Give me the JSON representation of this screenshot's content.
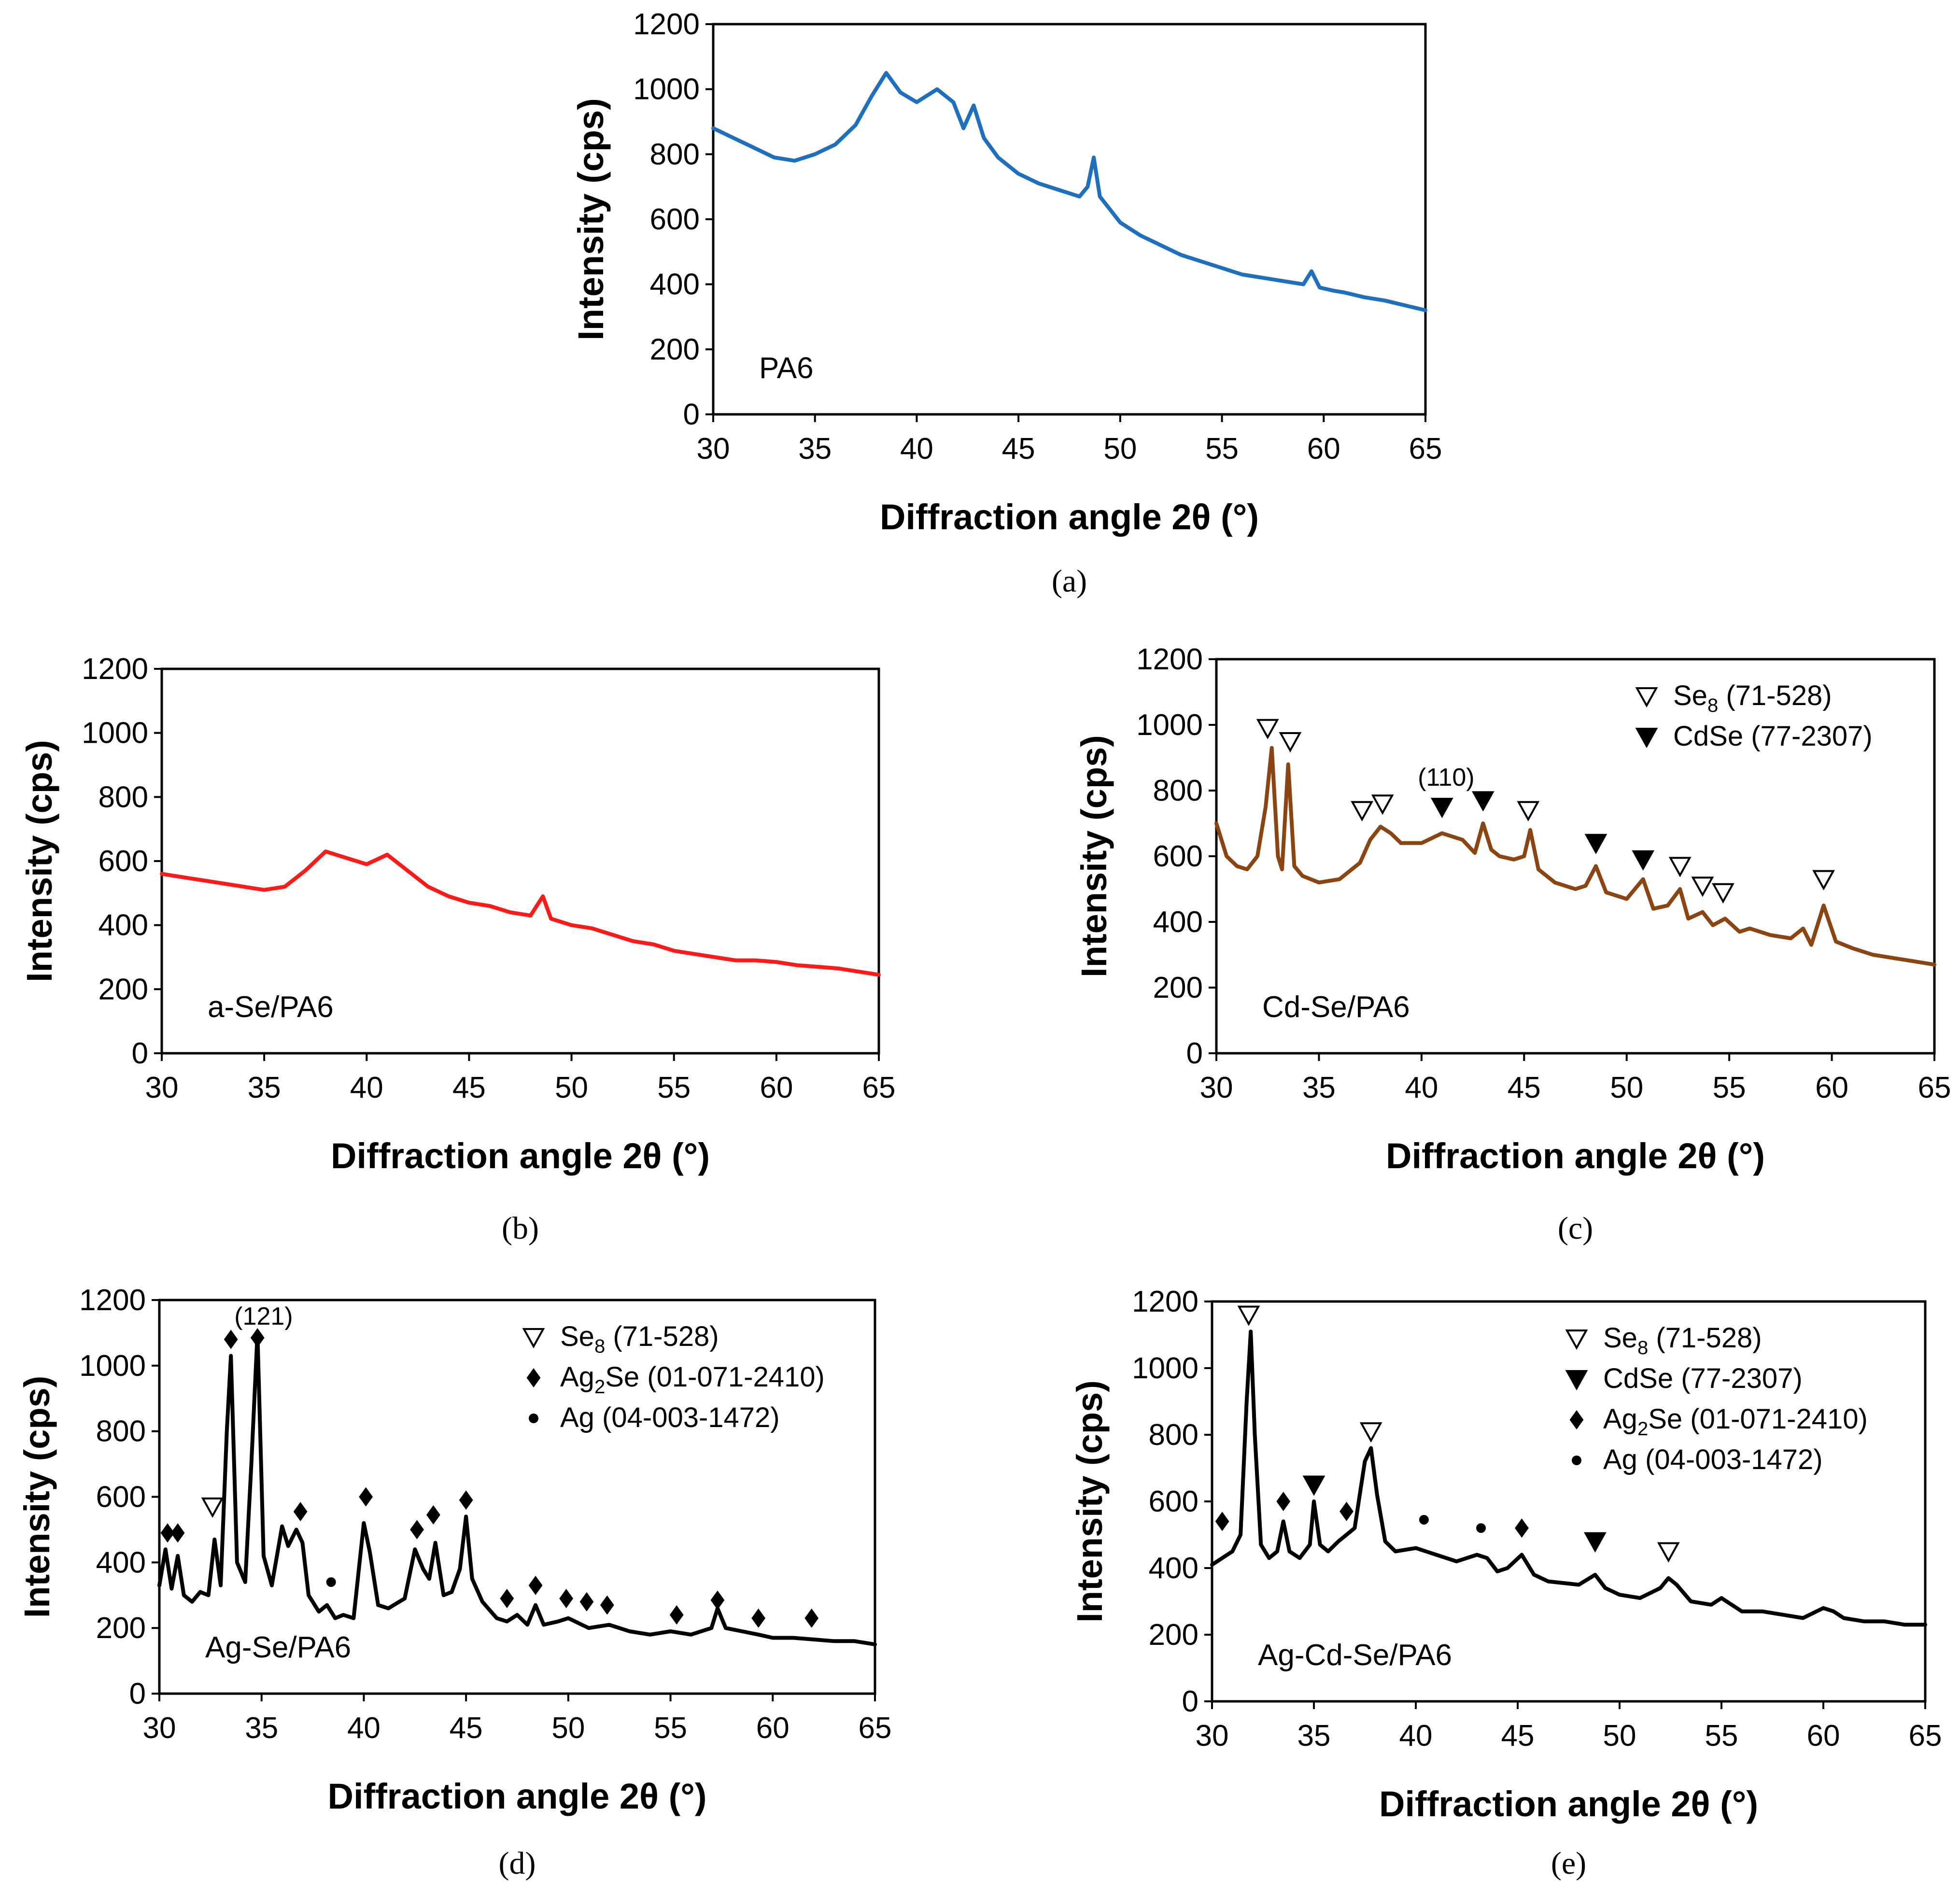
{
  "chart_data": [
    {
      "id": "a",
      "type": "line",
      "caption": "(a)",
      "sample": "PA6",
      "color": "#1f6fbf",
      "xlabel": "Diffraction angle 2θ (°)",
      "ylabel": "Intensity (cps)",
      "xlim": [
        30,
        65
      ],
      "ylim": [
        0,
        1200
      ],
      "xticks": [
        30,
        35,
        40,
        45,
        50,
        55,
        60,
        65
      ],
      "yticks": [
        0,
        200,
        400,
        600,
        800,
        1000,
        1200
      ],
      "legend": [],
      "annotations": [],
      "markers": [],
      "series": [
        {
          "x": [
            30,
            31,
            32,
            33,
            34,
            35,
            36,
            37,
            37.8,
            38.5,
            39.2,
            40,
            41,
            41.8,
            42.3,
            42.8,
            43.3,
            44,
            45,
            46,
            47,
            48,
            48.4,
            48.7,
            49,
            49.5,
            50,
            51,
            52,
            53,
            54,
            55,
            56,
            57,
            58,
            59,
            59.4,
            59.8,
            60.5,
            61,
            62,
            63,
            64,
            65
          ],
          "y": [
            880,
            850,
            820,
            790,
            780,
            800,
            830,
            890,
            980,
            1050,
            990,
            960,
            1000,
            960,
            880,
            950,
            850,
            790,
            740,
            710,
            690,
            670,
            700,
            790,
            670,
            630,
            590,
            550,
            520,
            490,
            470,
            450,
            430,
            420,
            410,
            400,
            440,
            390,
            380,
            375,
            360,
            350,
            335,
            320
          ]
        }
      ]
    },
    {
      "id": "b",
      "type": "line",
      "caption": "(b)",
      "sample": "a-Se/PA6",
      "color": "#ff1a1a",
      "xlabel": "Diffraction angle 2θ (°)",
      "ylabel": "Intensity (cps)",
      "xlim": [
        30,
        65
      ],
      "ylim": [
        0,
        1200
      ],
      "xticks": [
        30,
        35,
        40,
        45,
        50,
        55,
        60,
        65
      ],
      "yticks": [
        0,
        200,
        400,
        600,
        800,
        1000,
        1200
      ],
      "legend": [],
      "annotations": [],
      "markers": [],
      "series": [
        {
          "x": [
            30,
            31,
            32,
            33,
            34,
            35,
            36,
            37,
            38,
            39,
            40,
            41,
            42,
            43,
            44,
            45,
            46,
            47,
            48,
            48.6,
            49,
            50,
            51,
            52,
            53,
            54,
            55,
            56,
            57,
            58,
            59,
            60,
            61,
            62,
            63,
            64,
            65
          ],
          "y": [
            560,
            550,
            540,
            530,
            520,
            510,
            520,
            570,
            630,
            610,
            590,
            620,
            570,
            520,
            490,
            470,
            460,
            440,
            430,
            490,
            420,
            400,
            390,
            370,
            350,
            340,
            320,
            310,
            300,
            290,
            290,
            285,
            275,
            270,
            265,
            255,
            245
          ]
        }
      ]
    },
    {
      "id": "c",
      "type": "line",
      "caption": "(c)",
      "sample": "Cd-Se/PA6",
      "color": "#8b4513",
      "xlabel": "Diffraction angle 2θ (°)",
      "ylabel": "Intensity (cps)",
      "xlim": [
        30,
        65
      ],
      "ylim": [
        0,
        1200
      ],
      "xticks": [
        30,
        35,
        40,
        45,
        50,
        55,
        60,
        65
      ],
      "yticks": [
        0,
        200,
        400,
        600,
        800,
        1000,
        1200
      ],
      "legend": [
        {
          "symbol": "tri-down-open",
          "text": "Se",
          "sub": "8",
          "rest": " (71-528)"
        },
        {
          "symbol": "tri-down-filled",
          "text": "CdSe (77-2307)",
          "sub": "",
          "rest": ""
        }
      ],
      "annotations": [
        {
          "text": "(110)",
          "x": 41.2,
          "y": 815
        }
      ],
      "markers": [
        {
          "symbol": "tri-down-open",
          "x": 32.5,
          "y": 990
        },
        {
          "symbol": "tri-down-open",
          "x": 33.6,
          "y": 950
        },
        {
          "symbol": "tri-down-open",
          "x": 37.1,
          "y": 740
        },
        {
          "symbol": "tri-down-open",
          "x": 38.1,
          "y": 760
        },
        {
          "symbol": "tri-down-filled",
          "x": 41.0,
          "y": 750
        },
        {
          "symbol": "tri-down-filled",
          "x": 43.0,
          "y": 770
        },
        {
          "symbol": "tri-down-open",
          "x": 45.2,
          "y": 740
        },
        {
          "symbol": "tri-down-filled",
          "x": 48.5,
          "y": 640
        },
        {
          "symbol": "tri-down-filled",
          "x": 50.8,
          "y": 590
        },
        {
          "symbol": "tri-down-open",
          "x": 52.6,
          "y": 570
        },
        {
          "symbol": "tri-down-open",
          "x": 53.7,
          "y": 510
        },
        {
          "symbol": "tri-down-open",
          "x": 54.7,
          "y": 490
        },
        {
          "symbol": "tri-down-open",
          "x": 59.6,
          "y": 530
        }
      ],
      "series": [
        {
          "x": [
            30,
            30.5,
            31,
            31.5,
            32,
            32.4,
            32.7,
            33,
            33.2,
            33.5,
            33.8,
            34.2,
            35,
            36,
            37,
            37.5,
            38,
            38.5,
            39,
            40,
            41,
            42,
            42.6,
            43,
            43.4,
            43.8,
            44.5,
            45,
            45.3,
            45.7,
            46.5,
            47.5,
            48,
            48.5,
            49,
            50,
            50.8,
            51.3,
            52,
            52.6,
            53,
            53.7,
            54.2,
            54.8,
            55.5,
            56,
            57,
            58,
            58.6,
            59,
            59.6,
            60.2,
            61,
            62,
            63,
            64,
            65
          ],
          "y": [
            700,
            600,
            570,
            560,
            600,
            750,
            930,
            600,
            560,
            880,
            570,
            540,
            520,
            530,
            580,
            650,
            690,
            670,
            640,
            640,
            670,
            650,
            610,
            700,
            620,
            600,
            590,
            600,
            680,
            560,
            520,
            500,
            510,
            570,
            490,
            470,
            530,
            440,
            450,
            500,
            410,
            430,
            390,
            410,
            370,
            380,
            360,
            350,
            380,
            330,
            450,
            340,
            320,
            300,
            290,
            280,
            270
          ]
        }
      ]
    },
    {
      "id": "d",
      "type": "line",
      "caption": "(d)",
      "sample": "Ag-Se/PA6",
      "color": "#000000",
      "xlabel": "Diffraction angle 2θ (°)",
      "ylabel": "Intensity (cps)",
      "xlim": [
        30,
        65
      ],
      "ylim": [
        0,
        1200
      ],
      "xticks": [
        30,
        35,
        40,
        45,
        50,
        55,
        60,
        65
      ],
      "yticks": [
        0,
        200,
        400,
        600,
        800,
        1000,
        1200
      ],
      "legend": [
        {
          "symbol": "tri-down-open",
          "text": "Se",
          "sub": "8",
          "rest": " (71-528)"
        },
        {
          "symbol": "diamond",
          "text": "Ag",
          "sub": "2",
          "rest": "Se (01-071-2410)"
        },
        {
          "symbol": "dot",
          "text": "Ag (04-003-1472)",
          "sub": "",
          "rest": ""
        }
      ],
      "annotations": [
        {
          "text": "(121)",
          "x": 35.1,
          "y": 1125
        }
      ],
      "markers": [
        {
          "symbol": "diamond",
          "x": 30.4,
          "y": 490
        },
        {
          "symbol": "diamond",
          "x": 30.9,
          "y": 490
        },
        {
          "symbol": "tri-down-open",
          "x": 32.6,
          "y": 570
        },
        {
          "symbol": "diamond",
          "x": 33.5,
          "y": 1080
        },
        {
          "symbol": "diamond",
          "x": 34.8,
          "y": 1085
        },
        {
          "symbol": "diamond",
          "x": 36.9,
          "y": 555
        },
        {
          "symbol": "dot",
          "x": 38.4,
          "y": 340
        },
        {
          "symbol": "diamond",
          "x": 40.1,
          "y": 600
        },
        {
          "symbol": "diamond",
          "x": 42.6,
          "y": 500
        },
        {
          "symbol": "diamond",
          "x": 43.4,
          "y": 545
        },
        {
          "symbol": "diamond",
          "x": 45.0,
          "y": 590
        },
        {
          "symbol": "diamond",
          "x": 47.0,
          "y": 290
        },
        {
          "symbol": "diamond",
          "x": 48.4,
          "y": 330
        },
        {
          "symbol": "diamond",
          "x": 49.9,
          "y": 290
        },
        {
          "symbol": "diamond",
          "x": 50.9,
          "y": 280
        },
        {
          "symbol": "diamond",
          "x": 51.9,
          "y": 270
        },
        {
          "symbol": "diamond",
          "x": 55.3,
          "y": 240
        },
        {
          "symbol": "diamond",
          "x": 57.3,
          "y": 285
        },
        {
          "symbol": "diamond",
          "x": 59.3,
          "y": 230
        },
        {
          "symbol": "diamond",
          "x": 61.9,
          "y": 230
        }
      ],
      "series": [
        {
          "x": [
            30,
            30.3,
            30.6,
            30.9,
            31.2,
            31.6,
            32,
            32.4,
            32.7,
            33,
            33.3,
            33.5,
            33.8,
            34.2,
            34.5,
            34.8,
            35.1,
            35.5,
            36,
            36.3,
            36.7,
            37,
            37.3,
            37.8,
            38.2,
            38.6,
            39,
            39.5,
            40,
            40.3,
            40.7,
            41.2,
            42,
            42.5,
            42.9,
            43.2,
            43.5,
            43.9,
            44.3,
            44.7,
            45,
            45.3,
            45.8,
            46.5,
            47,
            47.5,
            48,
            48.4,
            48.8,
            49.5,
            50,
            51,
            52,
            53,
            54,
            55,
            56,
            57,
            57.3,
            57.7,
            58.5,
            59.3,
            60,
            61,
            62,
            63,
            64,
            65
          ],
          "y": [
            330,
            440,
            320,
            420,
            300,
            280,
            310,
            300,
            470,
            330,
            800,
            1030,
            400,
            340,
            700,
            1100,
            420,
            330,
            510,
            450,
            500,
            460,
            300,
            250,
            270,
            230,
            240,
            230,
            520,
            430,
            270,
            260,
            290,
            440,
            380,
            350,
            460,
            300,
            310,
            380,
            540,
            350,
            280,
            230,
            220,
            240,
            210,
            270,
            210,
            220,
            230,
            200,
            210,
            190,
            180,
            190,
            180,
            200,
            260,
            200,
            190,
            180,
            170,
            170,
            165,
            160,
            160,
            150
          ]
        }
      ]
    },
    {
      "id": "e",
      "type": "line",
      "caption": "(e)",
      "sample": "Ag-Cd-Se/PA6",
      "color": "#000000",
      "xlabel": "Diffraction angle 2θ (°)",
      "ylabel": "Intensity (cps)",
      "xlim": [
        30,
        65
      ],
      "ylim": [
        0,
        1200
      ],
      "xticks": [
        30,
        35,
        40,
        45,
        50,
        55,
        60,
        65
      ],
      "yticks": [
        0,
        200,
        400,
        600,
        800,
        1000,
        1200
      ],
      "legend": [
        {
          "symbol": "tri-down-open",
          "text": "Se",
          "sub": "8",
          "rest": " (71-528)"
        },
        {
          "symbol": "tri-down-filled",
          "text": "CdSe (77-2307)",
          "sub": "",
          "rest": ""
        },
        {
          "symbol": "diamond",
          "text": "Ag",
          "sub": "2",
          "rest": "Se (01-071-2410)"
        },
        {
          "symbol": "dot",
          "text": "Ag (04-003-1472)",
          "sub": "",
          "rest": ""
        }
      ],
      "annotations": [],
      "markers": [
        {
          "symbol": "tri-down-open",
          "x": 31.8,
          "y": 1160
        },
        {
          "symbol": "diamond",
          "x": 30.5,
          "y": 540
        },
        {
          "symbol": "diamond",
          "x": 33.5,
          "y": 600
        },
        {
          "symbol": "tri-down-filled",
          "x": 35.0,
          "y": 650
        },
        {
          "symbol": "diamond",
          "x": 36.6,
          "y": 570
        },
        {
          "symbol": "tri-down-open",
          "x": 37.8,
          "y": 810
        },
        {
          "symbol": "dot",
          "x": 40.4,
          "y": 545
        },
        {
          "symbol": "dot",
          "x": 43.2,
          "y": 520
        },
        {
          "symbol": "diamond",
          "x": 45.2,
          "y": 520
        },
        {
          "symbol": "tri-down-filled",
          "x": 48.8,
          "y": 480
        },
        {
          "symbol": "tri-down-open",
          "x": 52.4,
          "y": 450
        }
      ],
      "series": [
        {
          "x": [
            30,
            30.5,
            31,
            31.4,
            31.7,
            31.9,
            32.1,
            32.4,
            32.8,
            33.2,
            33.5,
            33.8,
            34.3,
            34.8,
            35,
            35.3,
            35.7,
            36.2,
            36.6,
            37,
            37.5,
            37.8,
            38.1,
            38.5,
            39,
            40,
            40.5,
            41,
            42,
            43,
            43.5,
            44,
            44.5,
            45.2,
            45.8,
            46.5,
            48,
            48.8,
            49.3,
            50,
            51,
            52,
            52.4,
            52.8,
            53.5,
            54.5,
            55,
            56,
            57,
            58,
            59,
            60,
            60.5,
            61,
            62,
            63,
            64,
            65
          ],
          "y": [
            410,
            430,
            450,
            500,
            900,
            1110,
            800,
            470,
            430,
            450,
            540,
            450,
            430,
            470,
            600,
            470,
            450,
            480,
            500,
            520,
            720,
            760,
            620,
            480,
            450,
            460,
            450,
            440,
            420,
            440,
            430,
            390,
            400,
            440,
            380,
            360,
            350,
            380,
            340,
            320,
            310,
            340,
            370,
            350,
            300,
            290,
            310,
            270,
            270,
            260,
            250,
            280,
            270,
            250,
            240,
            240,
            230,
            230
          ]
        }
      ]
    }
  ]
}
